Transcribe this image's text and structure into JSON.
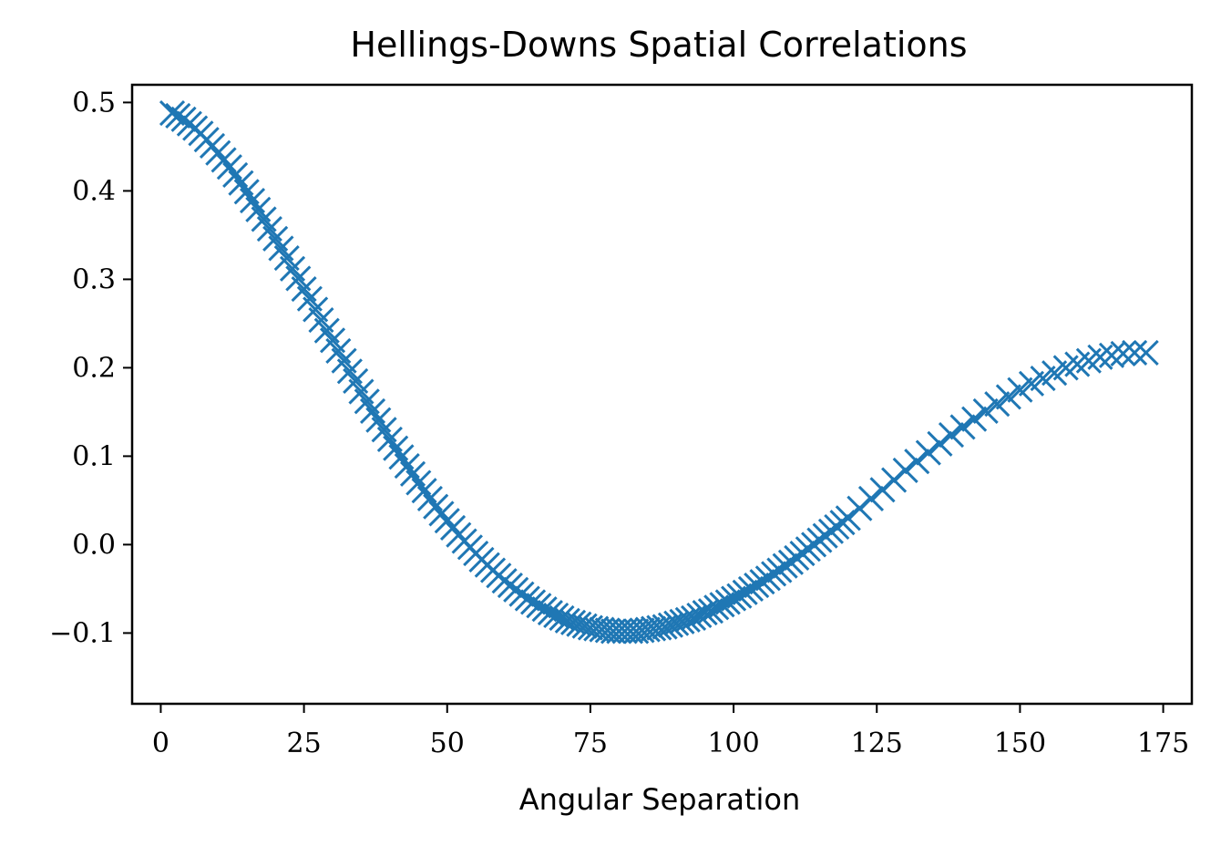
{
  "chart_data": {
    "type": "scatter",
    "title": "Hellings-Downs Spatial Correlations",
    "xlabel": "Angular Separation",
    "ylabel": "",
    "xlim": [
      -5,
      180
    ],
    "ylim": [
      -0.18,
      0.52
    ],
    "xticks": [
      0,
      25,
      50,
      75,
      100,
      125,
      150,
      175
    ],
    "xtick_labels": [
      "0",
      "25",
      "50",
      "75",
      "100",
      "125",
      "150",
      "175"
    ],
    "yticks": [
      -0.1,
      0.0,
      0.1,
      0.2,
      0.3,
      0.4,
      0.5
    ],
    "ytick_labels": [
      "−0.1",
      "0.0",
      "0.1",
      "0.2",
      "0.3",
      "0.4",
      "0.5"
    ],
    "grid": false,
    "legend": "none",
    "marker": "x",
    "color": "#1f77b4",
    "series": [
      {
        "x": [
          2,
          3,
          4,
          5,
          6,
          7,
          8,
          9,
          10,
          11,
          12,
          13,
          14,
          15,
          16,
          17,
          18,
          19,
          20,
          21,
          22,
          23,
          24,
          25,
          26,
          27,
          28,
          29,
          30,
          31,
          32,
          33,
          34,
          35,
          36,
          37,
          38,
          39,
          40,
          41,
          42,
          43,
          44,
          45,
          46,
          47,
          48,
          49,
          50,
          51,
          52,
          53,
          54,
          55,
          56,
          57,
          58,
          59,
          60,
          61,
          62,
          63,
          64,
          65,
          66,
          67,
          68,
          69,
          70,
          71,
          72,
          73,
          74,
          75,
          76,
          77,
          78,
          79,
          80,
          81,
          82,
          83,
          84,
          85,
          86,
          87,
          88,
          89,
          90,
          91,
          92,
          93,
          94,
          95,
          96,
          97,
          98,
          99,
          100,
          101,
          102,
          103,
          104,
          105,
          106,
          107,
          108,
          109,
          110,
          111,
          112,
          113,
          114,
          115,
          116,
          117,
          118,
          119,
          120,
          122,
          124,
          126,
          128,
          130,
          132,
          134,
          136,
          138,
          140,
          142,
          144,
          146,
          148,
          150,
          152,
          154,
          156,
          158,
          160,
          162,
          164,
          166,
          168,
          170,
          172
        ],
        "y": [
          0.488,
          0.485,
          0.481,
          0.476,
          0.471,
          0.465,
          0.458,
          0.451,
          0.443,
          0.435,
          0.427,
          0.418,
          0.409,
          0.399,
          0.389,
          0.379,
          0.368,
          0.357,
          0.346,
          0.335,
          0.324,
          0.312,
          0.301,
          0.289,
          0.278,
          0.266,
          0.254,
          0.242,
          0.231,
          0.219,
          0.208,
          0.196,
          0.185,
          0.173,
          0.162,
          0.151,
          0.141,
          0.13,
          0.119,
          0.109,
          0.099,
          0.089,
          0.08,
          0.07,
          0.061,
          0.052,
          0.043,
          0.035,
          0.027,
          0.019,
          0.011,
          0.004,
          -0.003,
          -0.01,
          -0.017,
          -0.023,
          -0.029,
          -0.035,
          -0.041,
          -0.046,
          -0.051,
          -0.056,
          -0.061,
          -0.065,
          -0.069,
          -0.073,
          -0.077,
          -0.08,
          -0.083,
          -0.086,
          -0.088,
          -0.09,
          -0.092,
          -0.094,
          -0.095,
          -0.096,
          -0.097,
          -0.098,
          -0.098,
          -0.098,
          -0.098,
          -0.098,
          -0.097,
          -0.096,
          -0.095,
          -0.094,
          -0.093,
          -0.091,
          -0.089,
          -0.087,
          -0.085,
          -0.083,
          -0.08,
          -0.077,
          -0.075,
          -0.071,
          -0.068,
          -0.065,
          -0.061,
          -0.058,
          -0.054,
          -0.05,
          -0.046,
          -0.042,
          -0.038,
          -0.033,
          -0.029,
          -0.024,
          -0.02,
          -0.015,
          -0.01,
          -0.005,
          0.0,
          0.005,
          0.01,
          0.015,
          0.02,
          0.025,
          0.03,
          0.041,
          0.052,
          0.062,
          0.073,
          0.084,
          0.094,
          0.104,
          0.114,
          0.124,
          0.133,
          0.142,
          0.151,
          0.159,
          0.167,
          0.175,
          0.182,
          0.188,
          0.194,
          0.2,
          0.204,
          0.208,
          0.212,
          0.214,
          0.216,
          0.217,
          0.217
        ]
      }
    ]
  }
}
